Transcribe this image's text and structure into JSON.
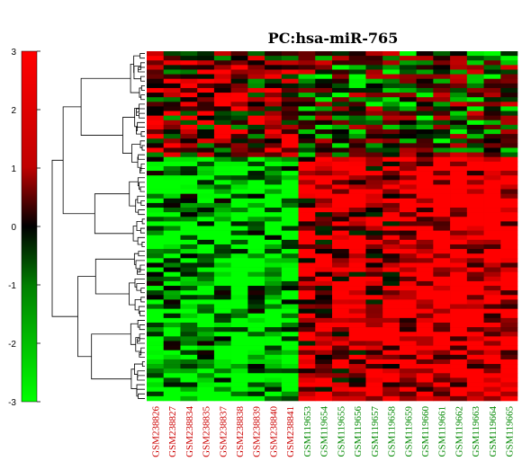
{
  "chart_data": {
    "type": "heatmap",
    "title": "PC:hsa-miR-765",
    "colorbar": {
      "range": [
        -3,
        3
      ],
      "ticks": [
        "3",
        "2",
        "1",
        "0",
        "-1",
        "-2",
        "-3"
      ],
      "colors": {
        "high": "#ff0000",
        "mid": "#000000",
        "low": "#00ff00"
      }
    },
    "row_count": 76,
    "columns": [
      {
        "label": "GSM238826",
        "group": "red"
      },
      {
        "label": "GSM238827",
        "group": "red"
      },
      {
        "label": "GSM238834",
        "group": "red"
      },
      {
        "label": "GSM238835",
        "group": "red"
      },
      {
        "label": "GSM238837",
        "group": "red"
      },
      {
        "label": "GSM238838",
        "group": "red"
      },
      {
        "label": "GSM238839",
        "group": "red"
      },
      {
        "label": "GSM238840",
        "group": "red"
      },
      {
        "label": "GSM238841",
        "group": "red"
      },
      {
        "label": "GSM119653",
        "group": "green"
      },
      {
        "label": "GSM119654",
        "group": "green"
      },
      {
        "label": "GSM119655",
        "group": "green"
      },
      {
        "label": "GSM119656",
        "group": "green"
      },
      {
        "label": "GSM119657",
        "group": "green"
      },
      {
        "label": "GSM119658",
        "group": "green"
      },
      {
        "label": "GSM119659",
        "group": "green"
      },
      {
        "label": "GSM119660",
        "group": "green"
      },
      {
        "label": "GSM119661",
        "group": "green"
      },
      {
        "label": "GSM119662",
        "group": "green"
      },
      {
        "label": "GSM119663",
        "group": "green"
      },
      {
        "label": "GSM119664",
        "group": "green"
      },
      {
        "label": "GSM119665",
        "group": "green"
      }
    ],
    "label_colors": {
      "red": "#cc0000",
      "green": "#008800"
    }
  }
}
